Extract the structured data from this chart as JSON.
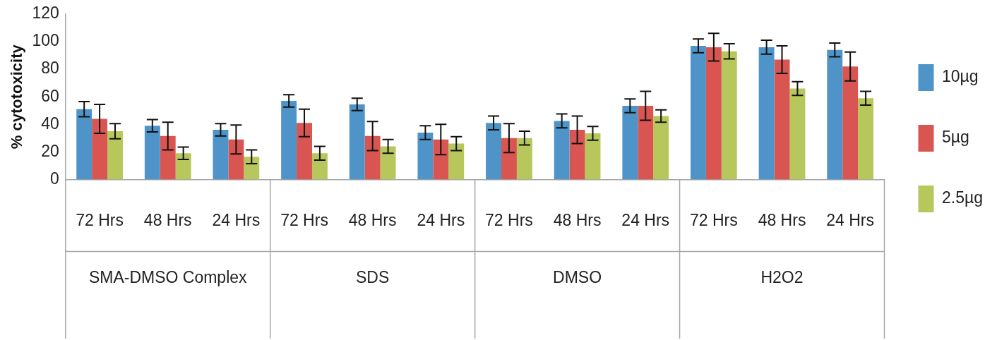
{
  "chart_data": {
    "type": "bar",
    "ylabel": "% cytotoxicity",
    "categories": [
      "72 Hrs",
      "48 Hrs",
      "24 Hrs",
      "72 Hrs",
      "48 Hrs",
      "24 Hrs",
      "72 Hrs",
      "48 Hrs",
      "24 Hrs",
      "72 Hrs",
      "48 Hrs",
      "24 Hrs"
    ],
    "annotations": [
      "SMA-DMSO Complex",
      "SDS",
      "DMSO",
      "H2O2"
    ],
    "series": [
      {
        "name": "10µg",
        "color": "#4f94c8",
        "values": [
          51,
          39,
          36,
          57,
          54.5,
          34,
          41,
          42.5,
          53.5,
          97,
          96,
          94
        ],
        "errors": [
          5.5,
          4.5,
          4.5,
          4.5,
          4.5,
          5,
          5,
          5,
          5,
          5,
          5,
          5
        ]
      },
      {
        "name": "5µg",
        "color": "#d95551",
        "values": [
          44,
          31.5,
          29,
          41,
          31.5,
          29,
          30,
          36,
          53.5,
          96,
          87,
          82
        ],
        "errors": [
          10.5,
          10,
          10.5,
          10,
          10.5,
          11,
          10.5,
          10,
          10.5,
          10,
          10,
          10.5
        ]
      },
      {
        "name": "2.5µg",
        "color": "#b8c75c",
        "values": [
          35,
          19,
          16.5,
          19,
          24,
          26,
          30,
          33.5,
          46,
          93,
          66,
          59
        ],
        "errors": [
          5.5,
          4.5,
          5,
          5,
          5,
          5,
          5,
          5,
          4.5,
          5.5,
          5,
          5
        ]
      }
    ],
    "ylim": [
      0,
      120
    ],
    "yticks": [
      0,
      20,
      40,
      60,
      80,
      100,
      120
    ],
    "grid": false,
    "legend": "right"
  }
}
